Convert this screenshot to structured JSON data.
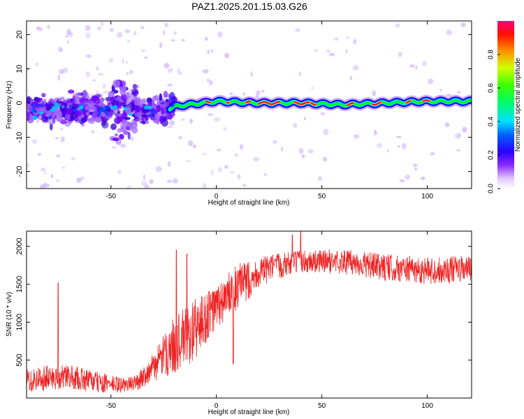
{
  "title": "PAZ1.2025.201.15.03.G26",
  "colors": {
    "snr_line": "#ee2222",
    "ridge_high": "#ff0000",
    "ridge_mid": "#00ff00",
    "ridge_low": "#0000ff",
    "scatter": "#6a00ff"
  },
  "chart_data": [
    {
      "type": "heatmap",
      "xlabel": "Height of straight line (km)",
      "ylabel": "Frequency (Hz)",
      "xlim": [
        -90,
        121
      ],
      "ylim": [
        -25,
        24
      ],
      "xticks": [
        -50,
        0,
        50,
        100
      ],
      "xtick_labels": [
        "-50",
        "0",
        "50",
        "100"
      ],
      "yticks": [
        -20,
        -10,
        0,
        10,
        20
      ],
      "ytick_labels": [
        "-20",
        "-10",
        "0",
        "10",
        "20"
      ],
      "grid": false,
      "ridge": {
        "description_points_x": [
          -90,
          -60,
          -40,
          -25,
          -20,
          0,
          20,
          40,
          60,
          80,
          100,
          121
        ],
        "description_points_y": [
          -2,
          -1.5,
          -2,
          -2.5,
          -1,
          0.5,
          0,
          0,
          -0.5,
          0,
          0.5,
          0.5
        ]
      },
      "colorbar": {
        "label": "Normalized spectral amplitude",
        "ticks": [
          0.0,
          0.2,
          0.4,
          0.6,
          0.8
        ],
        "tick_labels": [
          "0.0",
          "0.2",
          "0.4",
          "0.6",
          "0.8"
        ],
        "range": [
          0,
          1
        ]
      }
    },
    {
      "type": "line",
      "xlabel": "Height of straight line (km)",
      "ylabel": "SNR (10 * v/v)",
      "xlim": [
        -90,
        121
      ],
      "ylim": [
        0,
        2200
      ],
      "xticks": [
        -50,
        0,
        50,
        100
      ],
      "xtick_labels": [
        "-50",
        "0",
        "50",
        "100"
      ],
      "yticks": [
        500,
        1000,
        1500,
        2000
      ],
      "ytick_labels": [
        "500",
        "1000",
        "1500",
        "2000"
      ],
      "grid": false,
      "trend": {
        "x": [
          -90,
          -70,
          -55,
          -45,
          -38,
          -30,
          -20,
          -10,
          0,
          10,
          20,
          30,
          40,
          60,
          80,
          100,
          121
        ],
        "y": [
          250,
          280,
          200,
          170,
          200,
          400,
          700,
          900,
          1200,
          1450,
          1650,
          1750,
          1800,
          1800,
          1720,
          1680,
          1700
        ]
      },
      "noise": {
        "x": [
          -90,
          -60,
          -40,
          -30,
          -20,
          -10,
          0,
          10,
          20,
          40,
          80,
          121
        ],
        "amplitude": [
          180,
          150,
          90,
          180,
          380,
          420,
          300,
          320,
          200,
          150,
          180,
          180
        ]
      },
      "spikes": [
        {
          "x": -75,
          "y": 1520
        },
        {
          "x": -19,
          "y": 1950
        },
        {
          "x": -14,
          "y": 1900
        },
        {
          "x": 8,
          "y": 450
        },
        {
          "x": 40,
          "y": 2200
        },
        {
          "x": 36,
          "y": 2150
        }
      ]
    }
  ]
}
